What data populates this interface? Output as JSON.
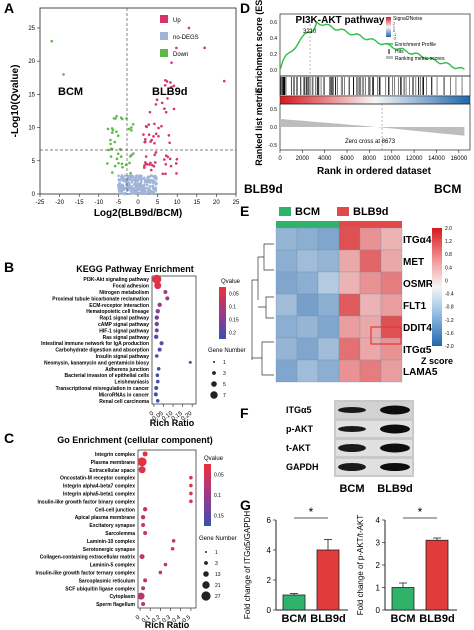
{
  "panels": {
    "A": {
      "letter": "A",
      "xlabel": "Log2(BLB9d/BCM)",
      "ylabel": "-Log10(Qvalue)",
      "left_group": "BCM",
      "right_group": "BLB9d",
      "legend": [
        {
          "label": "Up",
          "color": "#d6336c"
        },
        {
          "label": "no-DEGS",
          "color": "#9fb4d8"
        },
        {
          "label": "Down",
          "color": "#5fb84a"
        }
      ],
      "xticks": [
        "-25",
        "-20",
        "-15",
        "-10",
        "-5",
        "0",
        "5",
        "10",
        "15",
        "20",
        "25"
      ],
      "yticks": [
        "0",
        "5",
        "10",
        "15",
        "20",
        "25"
      ]
    },
    "B": {
      "letter": "B",
      "title": "KEGG Pathway Enrichment",
      "xlabel": "Rich Ratio",
      "pathways": [
        "PI3K-Akt signaling pathway",
        "Focal adhesion",
        "Nitrogen metabolism",
        "Proximal tubule bicarbonate reclamation",
        "ECM-receptor interaction",
        "Hematopoietic cell lineage",
        "Rap1 signal pathway",
        "cAMP signal pathway",
        "HIF-1 signal pathway",
        "Ras signal pathway",
        "Intestinal immune network for IgA production",
        "Carbohydrate digestion and absorption",
        "Insulin signal pathway",
        "Neomysin, kanamycin and gentamicin biosy",
        "Adherens junction",
        "Bacterial invasion of epithelial cells",
        "Leishmaniasis",
        "Transcriptional misregulation in cancer",
        "MicroRNAs in cancer",
        "Renal cell carcinoma"
      ],
      "xticks": [
        "0",
        "0.05",
        "0.10",
        "0.15",
        "0.20"
      ],
      "qvalue_title": "Qvalue",
      "qvalue_ticks": [
        "0.05",
        "0.1",
        "0.15",
        "0.2"
      ],
      "gene_number_title": "Gene Number",
      "gene_number_ticks": [
        "1",
        "3",
        "5",
        "7"
      ]
    },
    "C": {
      "letter": "C",
      "title": "Go Enrichment (cellular component)",
      "xlabel": "Rich Ratio",
      "terms": [
        "Integrin complex",
        "Plasma membrane",
        "Extracellular space",
        "Oncostatin-M receptor complex",
        "Integrin alpha4-beta7 complex",
        "Integrin alpha5-beta1 complex",
        "Insulin-like growth factor binary complex",
        "Cell-cell junction",
        "Apical plasma membrane",
        "Excitatory synapse",
        "Sarcolemma",
        "Laminin-10 complex",
        "Serotonergic synapse",
        "Collagen-containing extracellular matrix",
        "Laminin-5 complex",
        "Insulin-like growth factor ternary complex",
        "Sarcoplasmic reticulum",
        "SCF ubiquitin ligase complex",
        "Cytoplasm",
        "Sperm flagellum"
      ],
      "xticks": [
        "0",
        "0.1",
        "0.2",
        "0.3",
        "0.4",
        "0.5"
      ],
      "qvalue_title": "Qvalue",
      "qvalue_ticks": [
        "0.05",
        "0.1",
        "0.15"
      ],
      "gene_number_title": "Gene Number",
      "gene_number_ticks": [
        "1",
        "3",
        "13",
        "21",
        "27"
      ]
    },
    "D": {
      "letter": "D",
      "title": "PI3K-AKT pathway",
      "ylabel_top": "Enrichment score (ES)",
      "ylabel_bottom": "Ranked list metric",
      "xlabel": "Rank in ordered dataset",
      "peak_label": "3210",
      "zero_cross": "Zero cross at 8673",
      "left_group": "BLB9d",
      "right_group": "BCM",
      "legend_title": "Signal2Noise",
      "legend_scale": [
        "2",
        "1",
        "0",
        "-1",
        "-2"
      ],
      "legend_items": [
        "Enrichment Profile",
        "Hits",
        "Ranking metric scores"
      ],
      "xticks": [
        "0",
        "2000",
        "4000",
        "6000",
        "8000",
        "10000",
        "12000",
        "14000",
        "16000"
      ],
      "es_ticks": [
        "0.0",
        "0.2",
        "0.4",
        "0.6"
      ],
      "metric_ticks": [
        "0.5",
        "0.0",
        "-0.5"
      ]
    },
    "E": {
      "letter": "E",
      "group_left": "BCM",
      "group_right": "BLB9d",
      "group_left_color": "#2fb36b",
      "group_right_color": "#e24a4a",
      "genes": [
        "ITGα4",
        "MET",
        "OSMR",
        "FLT1",
        "DDIT4",
        "ITGα5",
        "LAMA5"
      ],
      "highlighted_gene": "ITGα5",
      "zscore_label": "Z score",
      "zscore_ticks": [
        "2.0",
        "1.2",
        "0.8",
        "0.4",
        "0",
        "-0.4",
        "-0.8",
        "-1.2",
        "-1.6",
        "-2.0"
      ],
      "matrix": [
        [
          -0.9,
          -1.0,
          -1.1,
          1.5,
          0.9,
          0.6
        ],
        [
          -1.0,
          -0.8,
          -0.9,
          0.7,
          1.3,
          0.7
        ],
        [
          -1.1,
          -1.0,
          -0.6,
          0.6,
          0.9,
          1.1
        ],
        [
          -0.8,
          -1.2,
          -1.0,
          1.4,
          0.6,
          0.8
        ],
        [
          -1.0,
          -0.9,
          -1.1,
          0.8,
          0.7,
          1.5
        ],
        [
          -0.9,
          -1.1,
          -0.8,
          1.2,
          0.7,
          0.9
        ],
        [
          -1.1,
          -0.8,
          -1.0,
          0.9,
          1.1,
          0.8
        ]
      ]
    },
    "F": {
      "letter": "F",
      "bands": [
        "ITGα5",
        "p-AKT",
        "t-AKT",
        "GAPDH"
      ],
      "groups": [
        "BCM",
        "BLB9d"
      ]
    },
    "G": {
      "letter": "G",
      "chart_data": [
        {
          "type": "bar",
          "ylabel": "Fold change of ITGα5/GAPDH",
          "categories": [
            "BCM",
            "BLB9d"
          ],
          "values": [
            1.0,
            4.0
          ],
          "errors": [
            0.1,
            0.7
          ],
          "ylim": [
            0,
            6
          ],
          "yticks": [
            "0",
            "2",
            "4",
            "6"
          ],
          "significance": "*",
          "colors": [
            "#2fb36b",
            "#e23b3b"
          ]
        },
        {
          "type": "bar",
          "ylabel": "Fold change of p-AKT/t-AKT",
          "categories": [
            "BCM",
            "BLB9d"
          ],
          "values": [
            1.0,
            3.1
          ],
          "errors": [
            0.2,
            0.1
          ],
          "ylim": [
            0,
            4
          ],
          "yticks": [
            "0",
            "1",
            "2",
            "3",
            "4"
          ],
          "significance": "*",
          "colors": [
            "#2fb36b",
            "#e23b3b"
          ]
        }
      ]
    }
  }
}
